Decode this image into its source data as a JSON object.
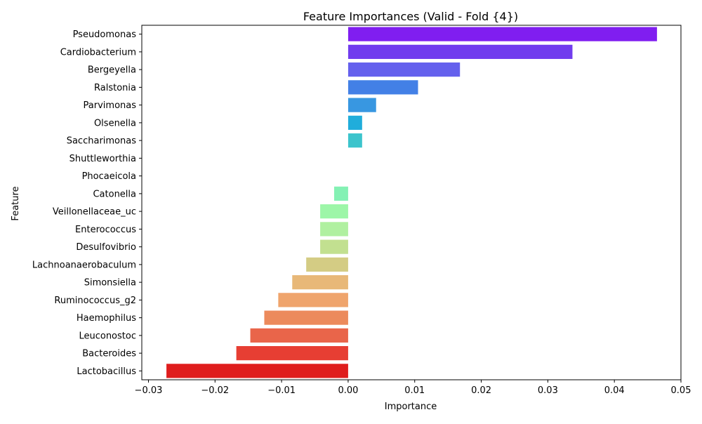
{
  "chart_data": {
    "type": "bar",
    "orientation": "horizontal",
    "title": "Feature Importances (Valid - Fold {4})",
    "xlabel": "Importance",
    "ylabel": "Feature",
    "xlim": [
      -0.031,
      0.05
    ],
    "xticks": [
      -0.03,
      -0.02,
      -0.01,
      0.0,
      0.01,
      0.02,
      0.03,
      0.04,
      0.05
    ],
    "xtick_labels": [
      "−0.03",
      "−0.02",
      "−0.01",
      "0.00",
      "0.01",
      "0.02",
      "0.03",
      "0.04",
      "0.05"
    ],
    "grid": false,
    "categories": [
      "Pseudomonas",
      "Cardiobacterium",
      "Bergeyella",
      "Ralstonia",
      "Parvimonas",
      "Olsenella",
      "Saccharimonas",
      "Shuttleworthia",
      "Phocaeicola",
      "Catonella",
      "Veillonellaceae_uc",
      "Enterococcus",
      "Desulfovibrio",
      "Lachnoanaerobaculum",
      "Simonsiella",
      "Ruminococcus_g2",
      "Haemophilus",
      "Leuconostoc",
      "Bacteroides",
      "Lactobacillus"
    ],
    "values": [
      0.0464,
      0.0337,
      0.0168,
      0.0105,
      0.0042,
      0.0021,
      0.0021,
      0.0,
      0.0,
      -0.0021,
      -0.0042,
      -0.0042,
      -0.0042,
      -0.0063,
      -0.0084,
      -0.0105,
      -0.0126,
      -0.0147,
      -0.0168,
      -0.0273
    ],
    "colors": [
      "#801ef0",
      "#713cee",
      "#6460ed",
      "#4380e6",
      "#3897e1",
      "#20addb",
      "#3cc4cc",
      "#4cd8c2",
      "#64e9b5",
      "#84f1b4",
      "#9df6a8",
      "#b0f0a0",
      "#c2e090",
      "#d4cc84",
      "#e8b878",
      "#efa46c",
      "#ec8a5c",
      "#e9654a",
      "#e73e33",
      "#df1d1d"
    ]
  }
}
